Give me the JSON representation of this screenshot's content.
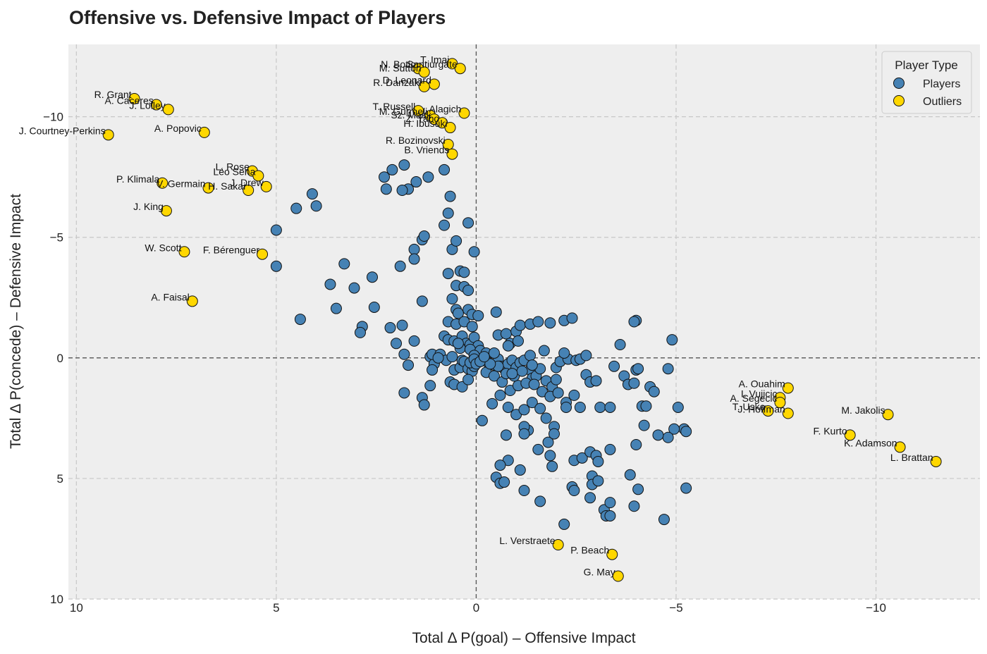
{
  "chart_data": {
    "type": "scatter",
    "title": "Offensive vs. Defensive Impact of Players",
    "xlabel": "Total Δ P(goal) – Offensive Impact",
    "ylabel": "Total Δ P(concede) – Defensive Impact",
    "xlim": [
      10.2,
      -12.6
    ],
    "ylim": [
      10.0,
      -13.0
    ],
    "x_inverted": true,
    "y_inverted": true,
    "xticks": [
      10,
      5,
      0,
      -5,
      -10
    ],
    "xtick_labels": [
      "10",
      "5",
      "0",
      "−5",
      "−10"
    ],
    "yticks": [
      -10,
      -5,
      0,
      5,
      10
    ],
    "ytick_labels": [
      "−10",
      "−5",
      "0",
      "5",
      "10"
    ],
    "grid": true,
    "reference_lines": {
      "x": 0,
      "y": 0
    },
    "legend": {
      "title": "Player Type",
      "position": "top-right",
      "entries": [
        {
          "label": "Players",
          "color": "#4682B4"
        },
        {
          "label": "Outliers",
          "color": "#FFD700"
        }
      ]
    },
    "series": [
      {
        "name": "Players",
        "color": "#4682B4",
        "points": [
          [
            2.3,
            -7.5
          ],
          [
            2.25,
            -7.0
          ],
          [
            2.1,
            -7.8
          ],
          [
            1.8,
            -8.0
          ],
          [
            1.5,
            -7.3
          ],
          [
            1.7,
            -7.0
          ],
          [
            1.85,
            -6.95
          ],
          [
            1.2,
            -7.5
          ],
          [
            0.8,
            -7.8
          ],
          [
            0.65,
            -6.7
          ],
          [
            0.7,
            -6.0
          ],
          [
            0.8,
            -5.5
          ],
          [
            0.2,
            -5.6
          ],
          [
            4.1,
            -6.8
          ],
          [
            4.5,
            -6.2
          ],
          [
            4.0,
            -6.3
          ],
          [
            5.0,
            -5.3
          ],
          [
            5.0,
            -3.8
          ],
          [
            4.4,
            -1.6
          ],
          [
            3.3,
            -3.9
          ],
          [
            3.65,
            -3.05
          ],
          [
            3.5,
            -2.05
          ],
          [
            3.05,
            -2.9
          ],
          [
            2.6,
            -3.35
          ],
          [
            2.55,
            -2.1
          ],
          [
            2.85,
            -1.3
          ],
          [
            2.9,
            -1.05
          ],
          [
            2.15,
            -1.25
          ],
          [
            1.85,
            -1.35
          ],
          [
            1.9,
            -3.8
          ],
          [
            1.55,
            -4.5
          ],
          [
            1.55,
            -4.1
          ],
          [
            1.35,
            -4.9
          ],
          [
            1.3,
            -5.05
          ],
          [
            1.35,
            -2.35
          ],
          [
            0.6,
            -4.5
          ],
          [
            0.5,
            -4.85
          ],
          [
            0.7,
            -3.5
          ],
          [
            0.4,
            -3.6
          ],
          [
            0.3,
            -3.55
          ],
          [
            0.5,
            -3.0
          ],
          [
            0.3,
            -2.95
          ],
          [
            0.6,
            -2.45
          ],
          [
            0.2,
            -2.8
          ],
          [
            0.5,
            -2.0
          ],
          [
            0.45,
            -1.85
          ],
          [
            0.2,
            -2.0
          ],
          [
            0.1,
            -1.8
          ],
          [
            0.05,
            -4.4
          ],
          [
            0.7,
            -1.5
          ],
          [
            0.5,
            -1.4
          ],
          [
            0.3,
            -1.5
          ],
          [
            0.1,
            -1.3
          ],
          [
            -0.05,
            -1.75
          ],
          [
            0.8,
            -0.9
          ],
          [
            0.7,
            -0.75
          ],
          [
            0.55,
            -0.7
          ],
          [
            0.35,
            -0.9
          ],
          [
            0.25,
            -0.6
          ],
          [
            0.15,
            -0.55
          ],
          [
            0.05,
            -0.85
          ],
          [
            -0.05,
            -0.5
          ],
          [
            0.4,
            -0.4
          ],
          [
            0.15,
            -0.35
          ],
          [
            -0.1,
            -0.3
          ],
          [
            -0.25,
            -0.1
          ],
          [
            2.0,
            -0.6
          ],
          [
            1.8,
            -0.15
          ],
          [
            1.7,
            0.3
          ],
          [
            1.55,
            -0.7
          ],
          [
            1.15,
            -0.05
          ],
          [
            1.05,
            0.25
          ],
          [
            1.1,
            -0.15
          ],
          [
            0.9,
            -0.15
          ],
          [
            0.75,
            0.1
          ],
          [
            0.6,
            -0.05
          ],
          [
            0.55,
            0.5
          ],
          [
            0.4,
            0.4
          ],
          [
            0.35,
            0.1
          ],
          [
            0.3,
            0.15
          ],
          [
            0.2,
            0.45
          ],
          [
            0.1,
            0.55
          ],
          [
            0.05,
            0.35
          ],
          [
            0.15,
            0.2
          ],
          [
            0.05,
            -0.1
          ],
          [
            0.65,
            1.0
          ],
          [
            0.55,
            1.1
          ],
          [
            0.35,
            1.2
          ],
          [
            0.2,
            0.9
          ],
          [
            1.15,
            1.15
          ],
          [
            1.35,
            1.65
          ],
          [
            1.8,
            1.45
          ],
          [
            1.3,
            1.95
          ],
          [
            -0.25,
            -0.2
          ],
          [
            -0.3,
            0.2
          ],
          [
            -0.45,
            0.3
          ],
          [
            -0.55,
            0.05
          ],
          [
            -0.6,
            0.35
          ],
          [
            -0.7,
            0.45
          ],
          [
            -0.8,
            0.25
          ],
          [
            -0.9,
            0.1
          ],
          [
            -1.0,
            0.4
          ],
          [
            -1.1,
            0.2
          ],
          [
            -1.2,
            0.1
          ],
          [
            -1.35,
            0.5
          ],
          [
            -1.4,
            0.85
          ],
          [
            -1.5,
            0.75
          ],
          [
            -1.6,
            0.45
          ],
          [
            -1.75,
            0.95
          ],
          [
            -1.9,
            1.2
          ],
          [
            -2.0,
            0.4
          ],
          [
            -2.1,
            0.15
          ],
          [
            -2.3,
            0.05
          ],
          [
            -2.5,
            0.1
          ],
          [
            -0.25,
            0.6
          ],
          [
            -0.45,
            0.75
          ],
          [
            -0.65,
            1.0
          ],
          [
            -0.85,
            1.35
          ],
          [
            -1.05,
            1.15
          ],
          [
            -1.25,
            1.05
          ],
          [
            -1.45,
            1.1
          ],
          [
            -1.65,
            1.4
          ],
          [
            -1.85,
            1.6
          ],
          [
            -2.05,
            1.45
          ],
          [
            -2.25,
            1.85
          ],
          [
            -2.45,
            1.55
          ],
          [
            -0.4,
            1.9
          ],
          [
            -0.6,
            1.55
          ],
          [
            -0.8,
            2.05
          ],
          [
            -1.0,
            2.35
          ],
          [
            -1.2,
            2.15
          ],
          [
            -1.4,
            1.85
          ],
          [
            -1.6,
            2.1
          ],
          [
            -1.75,
            2.5
          ],
          [
            -1.95,
            2.85
          ],
          [
            -2.25,
            2.05
          ],
          [
            -2.6,
            2.05
          ],
          [
            -0.15,
            2.6
          ],
          [
            -0.55,
            0.35
          ],
          [
            -0.75,
            0.65
          ],
          [
            -0.95,
            0.75
          ],
          [
            -1.15,
            0.55
          ],
          [
            -0.55,
            -0.95
          ],
          [
            -0.75,
            -1.0
          ],
          [
            -0.85,
            -0.6
          ],
          [
            -1.0,
            -1.1
          ],
          [
            -1.1,
            -1.35
          ],
          [
            -1.35,
            -1.4
          ],
          [
            -1.55,
            -1.5
          ],
          [
            -1.85,
            -1.45
          ],
          [
            -2.2,
            -1.55
          ],
          [
            -2.4,
            -1.65
          ],
          [
            -1.05,
            -0.7
          ],
          [
            -1.35,
            -0.1
          ],
          [
            -0.9,
            0.65
          ],
          [
            -2.6,
            0.05
          ],
          [
            -2.75,
            0.7
          ],
          [
            -2.85,
            1.0
          ],
          [
            -3.0,
            0.95
          ],
          [
            -3.1,
            2.05
          ],
          [
            -3.35,
            2.05
          ],
          [
            -3.45,
            0.35
          ],
          [
            -3.6,
            -0.55
          ],
          [
            -3.7,
            0.75
          ],
          [
            -3.8,
            1.1
          ],
          [
            -3.95,
            1.05
          ],
          [
            -4.0,
            0.5
          ],
          [
            -4.05,
            0.45
          ],
          [
            -4.0,
            -1.55
          ],
          [
            -4.15,
            2.0
          ],
          [
            -4.25,
            2.0
          ],
          [
            -4.35,
            1.2
          ],
          [
            -4.45,
            1.4
          ],
          [
            -4.8,
            0.45
          ],
          [
            -4.9,
            -0.75
          ],
          [
            -5.05,
            2.05
          ],
          [
            -5.2,
            2.95
          ],
          [
            -5.25,
            3.05
          ],
          [
            -4.95,
            2.95
          ],
          [
            -4.8,
            3.3
          ],
          [
            -4.55,
            3.2
          ],
          [
            -4.2,
            2.8
          ],
          [
            -4.0,
            3.6
          ],
          [
            -2.45,
            4.25
          ],
          [
            -2.65,
            4.15
          ],
          [
            -2.85,
            3.9
          ],
          [
            -3.0,
            4.05
          ],
          [
            -3.05,
            4.3
          ],
          [
            -3.35,
            3.8
          ],
          [
            -2.9,
            4.9
          ],
          [
            -2.9,
            5.25
          ],
          [
            -3.05,
            5.1
          ],
          [
            -2.4,
            5.35
          ],
          [
            -2.45,
            5.5
          ],
          [
            -2.85,
            5.8
          ],
          [
            -1.9,
            4.5
          ],
          [
            -1.85,
            4.05
          ],
          [
            -1.8,
            3.5
          ],
          [
            -1.95,
            3.15
          ],
          [
            -1.55,
            3.8
          ],
          [
            -1.3,
            3.0
          ],
          [
            -1.2,
            2.85
          ],
          [
            -1.2,
            3.15
          ],
          [
            -0.75,
            3.2
          ],
          [
            -1.1,
            4.65
          ],
          [
            -1.2,
            5.5
          ],
          [
            -0.8,
            4.25
          ],
          [
            -0.6,
            4.45
          ],
          [
            -0.5,
            4.95
          ],
          [
            -0.6,
            5.2
          ],
          [
            -0.7,
            5.15
          ],
          [
            -1.6,
            5.95
          ],
          [
            -2.2,
            6.9
          ],
          [
            -3.2,
            6.3
          ],
          [
            -3.25,
            6.55
          ],
          [
            -3.35,
            6.55
          ],
          [
            -3.35,
            6.0
          ],
          [
            -3.85,
            4.85
          ],
          [
            -4.05,
            5.45
          ],
          [
            -3.95,
            6.15
          ],
          [
            -4.7,
            6.7
          ],
          [
            -5.25,
            5.4
          ],
          [
            -3.95,
            -1.5
          ],
          [
            -0.5,
            -1.9
          ],
          [
            -0.8,
            -0.5
          ],
          [
            -0.45,
            -0.2
          ],
          [
            -1.7,
            -0.3
          ],
          [
            -2.2,
            -0.2
          ],
          [
            -2.75,
            -0.1
          ],
          [
            0.95,
            0.0
          ],
          [
            1.1,
            0.5
          ],
          [
            0.05,
            0.05
          ],
          [
            0.0,
            0.25
          ],
          [
            -0.1,
            0.15
          ],
          [
            -0.35,
            0.25
          ],
          [
            -0.2,
            -0.05
          ],
          [
            0.45,
            -0.6
          ],
          [
            -2.0,
            0.9
          ],
          [
            -1.4,
            0.3
          ]
        ]
      },
      {
        "name": "Outliers",
        "color": "#FFD700",
        "points": [
          {
            "x": 0.6,
            "y": -12.2,
            "label": "T. Imai"
          },
          {
            "x": 1.45,
            "y": -12.0,
            "label": "N. Botic"
          },
          {
            "x": 0.4,
            "y": -12.0,
            "label": "Santiurgate"
          },
          {
            "x": 1.3,
            "y": -11.85,
            "label": "M. Sutton"
          },
          {
            "x": 1.05,
            "y": -11.35,
            "label": "D. Leonard"
          },
          {
            "x": 1.3,
            "y": -11.25,
            "label": "R. Danzaki"
          },
          {
            "x": 1.45,
            "y": -10.25,
            "label": "T. Russell"
          },
          {
            "x": 1.15,
            "y": -10.05,
            "label": "M. Gurmeli"
          },
          {
            "x": 0.3,
            "y": -10.15,
            "label": "Alagich"
          },
          {
            "x": 1.05,
            "y": -9.9,
            "label": "Sz. Mask"
          },
          {
            "x": 0.85,
            "y": -9.75,
            "label": "Z. Yabo"
          },
          {
            "x": 0.65,
            "y": -9.55,
            "label": "H. Ibusuki"
          },
          {
            "x": 0.7,
            "y": -8.85,
            "label": "R. Bozinovski"
          },
          {
            "x": 0.6,
            "y": -8.45,
            "label": "B. Vriends"
          },
          {
            "x": 8.55,
            "y": -10.75,
            "label": "R. Grant"
          },
          {
            "x": 8.0,
            "y": -10.5,
            "label": "A. Caceres"
          },
          {
            "x": 7.7,
            "y": -10.3,
            "label": "J. Lolley"
          },
          {
            "x": 9.2,
            "y": -9.25,
            "label": "J. Courtney-Perkins"
          },
          {
            "x": 6.8,
            "y": -9.35,
            "label": "A. Popovic"
          },
          {
            "x": 5.6,
            "y": -7.75,
            "label": "L. Rose"
          },
          {
            "x": 5.45,
            "y": -7.55,
            "label": "Léo Sena"
          },
          {
            "x": 5.25,
            "y": -7.1,
            "label": "J. Drew"
          },
          {
            "x": 5.7,
            "y": -6.95,
            "label": "H. Sakai"
          },
          {
            "x": 7.85,
            "y": -7.25,
            "label": "P. Klimala"
          },
          {
            "x": 6.7,
            "y": -7.05,
            "label": "V. Germain"
          },
          {
            "x": 7.75,
            "y": -6.1,
            "label": "J. King"
          },
          {
            "x": 7.3,
            "y": -4.4,
            "label": "W. Scott"
          },
          {
            "x": 5.35,
            "y": -4.3,
            "label": "F. Bérenguer"
          },
          {
            "x": 7.1,
            "y": -2.35,
            "label": "A. Faisal"
          },
          {
            "x": -7.8,
            "y": 1.25,
            "label": "A. Ouahim"
          },
          {
            "x": -7.6,
            "y": 1.65,
            "label": "I. Vujicic"
          },
          {
            "x": -7.6,
            "y": 1.85,
            "label": "A. Segecic"
          },
          {
            "x": -7.3,
            "y": 2.2,
            "label": "T. Usko"
          },
          {
            "x": -7.8,
            "y": 2.3,
            "label": "J. Hoffman"
          },
          {
            "x": -10.3,
            "y": 2.35,
            "label": "M. Jakolis"
          },
          {
            "x": -9.35,
            "y": 3.2,
            "label": "F. Kurto"
          },
          {
            "x": -10.6,
            "y": 3.7,
            "label": "K. Adamson"
          },
          {
            "x": -11.5,
            "y": 4.3,
            "label": "L. Brattan"
          },
          {
            "x": -2.05,
            "y": 7.75,
            "label": "L. Verstraete"
          },
          {
            "x": -3.4,
            "y": 8.15,
            "label": "P. Beach"
          },
          {
            "x": -3.55,
            "y": 9.05,
            "label": "G. May"
          }
        ]
      }
    ]
  }
}
